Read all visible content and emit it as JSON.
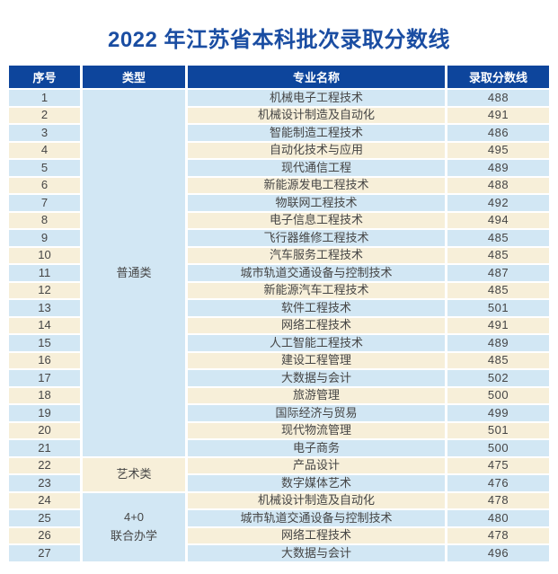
{
  "title": "2022 年江苏省本科批次录取分数线",
  "colors": {
    "header_bg": "#0d459c",
    "title_text": "#1a4da2",
    "row_blue": "#d2e7f4",
    "row_cream": "#f7efd9",
    "cell_text": "#454545"
  },
  "table": {
    "headers": [
      "序号",
      "类型",
      "专业名称",
      "录取分数线"
    ],
    "type_groups": [
      {
        "label": "普通类",
        "start": 1,
        "span": 21,
        "tone": "blue"
      },
      {
        "label": "艺术类",
        "start": 22,
        "span": 2,
        "tone": "cream"
      },
      {
        "label": "4+0\n联合办学",
        "start": 24,
        "span": 4,
        "tone": "blue"
      }
    ],
    "rows": [
      {
        "no": "1",
        "major": "机械电子工程技术",
        "score": "488"
      },
      {
        "no": "2",
        "major": "机械设计制造及自动化",
        "score": "491"
      },
      {
        "no": "3",
        "major": "智能制造工程技术",
        "score": "486"
      },
      {
        "no": "4",
        "major": "自动化技术与应用",
        "score": "495"
      },
      {
        "no": "5",
        "major": "现代通信工程",
        "score": "489"
      },
      {
        "no": "6",
        "major": "新能源发电工程技术",
        "score": "488"
      },
      {
        "no": "7",
        "major": "物联网工程技术",
        "score": "492"
      },
      {
        "no": "8",
        "major": "电子信息工程技术",
        "score": "494"
      },
      {
        "no": "9",
        "major": "飞行器维修工程技术",
        "score": "485"
      },
      {
        "no": "10",
        "major": "汽车服务工程技术",
        "score": "485"
      },
      {
        "no": "11",
        "major": "城市轨道交通设备与控制技术",
        "score": "487"
      },
      {
        "no": "12",
        "major": "新能源汽车工程技术",
        "score": "485"
      },
      {
        "no": "13",
        "major": "软件工程技术",
        "score": "501"
      },
      {
        "no": "14",
        "major": "网络工程技术",
        "score": "491"
      },
      {
        "no": "15",
        "major": "人工智能工程技术",
        "score": "489"
      },
      {
        "no": "16",
        "major": "建设工程管理",
        "score": "485"
      },
      {
        "no": "17",
        "major": "大数据与会计",
        "score": "502"
      },
      {
        "no": "18",
        "major": "旅游管理",
        "score": "500"
      },
      {
        "no": "19",
        "major": "国际经济与贸易",
        "score": "499"
      },
      {
        "no": "20",
        "major": "现代物流管理",
        "score": "501"
      },
      {
        "no": "21",
        "major": "电子商务",
        "score": "500"
      },
      {
        "no": "22",
        "major": "产品设计",
        "score": "475"
      },
      {
        "no": "23",
        "major": "数字媒体艺术",
        "score": "476"
      },
      {
        "no": "24",
        "major": "机械设计制造及自动化",
        "score": "478"
      },
      {
        "no": "25",
        "major": "城市轨道交通设备与控制技术",
        "score": "480"
      },
      {
        "no": "26",
        "major": "网络工程技术",
        "score": "478"
      },
      {
        "no": "27",
        "major": "大数据与会计",
        "score": "496"
      }
    ]
  }
}
